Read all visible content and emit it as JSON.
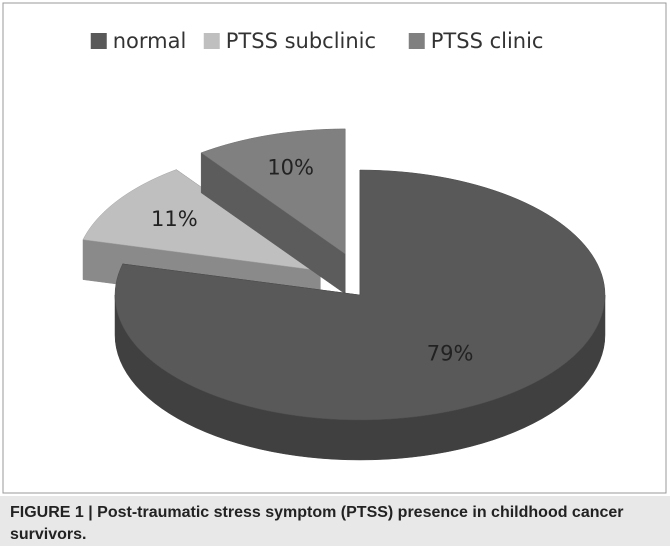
{
  "chart_data": {
    "type": "pie",
    "categories": [
      "normal",
      "PTSS subclinic",
      "PTSS clinic"
    ],
    "values": [
      79,
      11,
      10
    ],
    "value_labels": [
      "79%",
      "11%",
      "10%"
    ],
    "colors": [
      "#595959",
      "#bfbfbf",
      "#808080"
    ],
    "legend": "top",
    "caption": "FIGURE 1 | Post-traumatic stress symptom (PTSS) presence in childhood cancer survivors."
  }
}
